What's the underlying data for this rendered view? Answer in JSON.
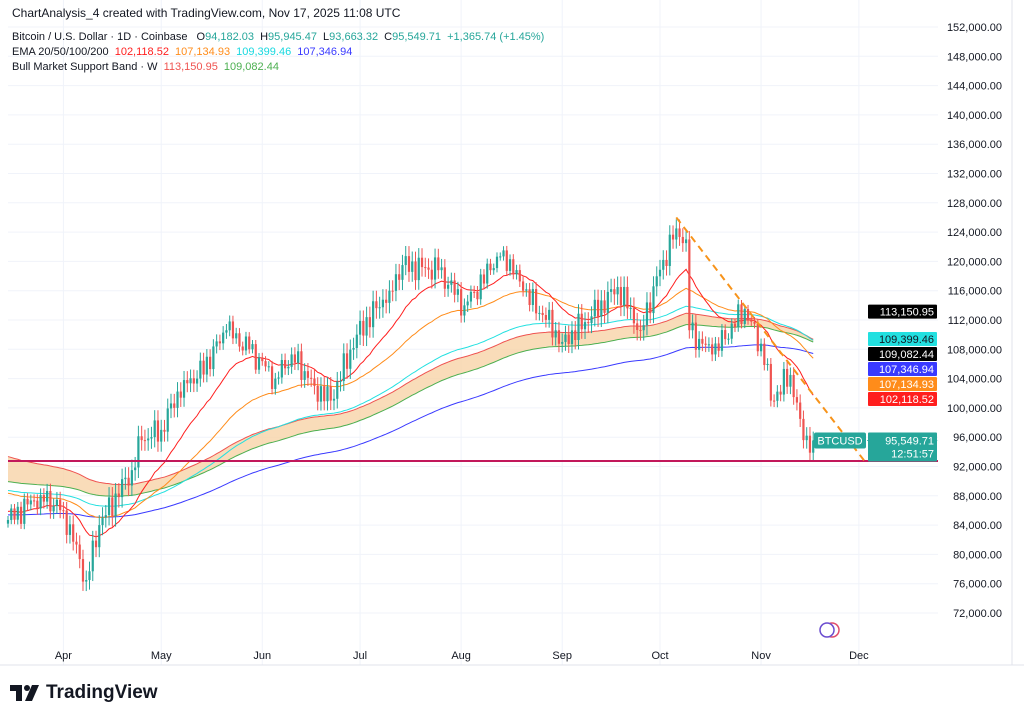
{
  "header": {
    "caption": "ChartAnalysis_4 created with TradingView.com, Nov 17, 2025 11:08 UTC"
  },
  "legend": {
    "symbol": "Bitcoin / U.S. Dollar · 1D · Coinbase",
    "o_label": "O",
    "o": "94,182.03",
    "h_label": "H",
    "h": "95,945.47",
    "l_label": "L",
    "l": "93,663.32",
    "c_label": "C",
    "c": "95,549.71",
    "change": "+1,365.74 (+1.45%)",
    "ema_label": "EMA 20/50/100/200",
    "ema20": "102,118.52",
    "ema50": "107,134.93",
    "ema100": "109,399.46",
    "ema200": "107,346.94",
    "band_label": "Bull Market Support Band · W",
    "band_sma": "113,150.95",
    "band_ema": "109,082.44"
  },
  "colors": {
    "up": "#26a69a",
    "down": "#ef5350",
    "ema20": "#ff1e1e",
    "ema50": "#ff8c1a",
    "ema100": "#22e0e0",
    "ema200": "#3a3aff",
    "band_top": "#ef5350",
    "band_bottom": "#4caf50",
    "band_fill": "#f8d3a8",
    "support": "#c2185b",
    "trend": "#f7931a"
  },
  "logo": {
    "text": "TradingView"
  },
  "chart_data": {
    "type": "candlestick",
    "title": "Bitcoin / U.S. Dollar · 1D · Coinbase",
    "ylim": [
      68000,
      154000
    ],
    "y_ticks": [
      72000,
      76000,
      80000,
      84000,
      88000,
      92000,
      96000,
      100000,
      104000,
      108000,
      112000,
      116000,
      120000,
      124000,
      128000,
      132000,
      136000,
      140000,
      144000,
      148000,
      152000
    ],
    "y_tick_labels": [
      "72,000.00",
      "76,000.00",
      "80,000.00",
      "84,000.00",
      "88,000.00",
      "92,000.00",
      "96,000.00",
      "100,000.00",
      "104,000.00",
      "108,000.00",
      "112,000.00",
      "116,000.00",
      "120,000.00",
      "124,000.00",
      "128,000.00",
      "132,000.00",
      "136,000.00",
      "140,000.00",
      "144,000.00",
      "148,000.00",
      "152,000.00"
    ],
    "x_day_range": [
      0,
      285
    ],
    "x_ticks": [
      {
        "day": 17,
        "label": "Apr"
      },
      {
        "day": 47,
        "label": "May"
      },
      {
        "day": 78,
        "label": "Jun"
      },
      {
        "day": 108,
        "label": "Jul"
      },
      {
        "day": 139,
        "label": "Aug"
      },
      {
        "day": 170,
        "label": "Sep"
      },
      {
        "day": 200,
        "label": "Oct"
      },
      {
        "day": 231,
        "label": "Nov"
      },
      {
        "day": 261,
        "label": "Dec"
      }
    ],
    "close_anchors": [
      [
        0,
        84700
      ],
      [
        10,
        88100
      ],
      [
        17,
        86000
      ],
      [
        24,
        76500
      ],
      [
        28,
        84000
      ],
      [
        38,
        91500
      ],
      [
        41,
        95600
      ],
      [
        47,
        97000
      ],
      [
        54,
        103800
      ],
      [
        58,
        104000
      ],
      [
        67,
        110600
      ],
      [
        74,
        108000
      ],
      [
        82,
        104000
      ],
      [
        87,
        107300
      ],
      [
        94,
        103000
      ],
      [
        99,
        101000
      ],
      [
        107,
        110000
      ],
      [
        117,
        116000
      ],
      [
        121,
        119500
      ],
      [
        132,
        118800
      ],
      [
        140,
        114000
      ],
      [
        148,
        118800
      ],
      [
        152,
        121500
      ],
      [
        158,
        116000
      ],
      [
        168,
        110600
      ],
      [
        170,
        109000
      ],
      [
        179,
        112500
      ],
      [
        187,
        116500
      ],
      [
        194,
        110600
      ],
      [
        201,
        120200
      ],
      [
        205,
        124500
      ],
      [
        208,
        123000
      ],
      [
        209,
        110600
      ],
      [
        216,
        107300
      ],
      [
        226,
        113500
      ],
      [
        233,
        106000
      ],
      [
        234,
        101000
      ],
      [
        240,
        104500
      ],
      [
        243,
        98500
      ],
      [
        244,
        95600
      ],
      [
        247,
        95549.71
      ]
    ],
    "ema_seeds": {
      "ema20": 86000,
      "ema50": 88500,
      "ema100": 88800,
      "ema200": 85400,
      "band_sma": 93500,
      "band_ema": 90000
    },
    "support_level": 92750,
    "trendline": [
      [
        205,
        126000
      ],
      [
        263,
        92600
      ]
    ],
    "last_price": "95,549.71",
    "countdown": "12:51:57",
    "symbol_tag": "BTCUSD",
    "price_tags": [
      {
        "key": "band_sma",
        "value": 113150.95,
        "label": "113,150.95"
      },
      {
        "key": "ema100",
        "value": 109399.46,
        "label": "109,399.46"
      },
      {
        "key": "band_ema",
        "value": 109082.44,
        "label": "109,082.44"
      },
      {
        "key": "ema200",
        "value": 107346.94,
        "label": "107,346.94"
      },
      {
        "key": "ema50",
        "value": 107134.93,
        "label": "107,134.93"
      },
      {
        "key": "ema20",
        "value": 102118.52,
        "label": "102,118.52"
      }
    ]
  }
}
